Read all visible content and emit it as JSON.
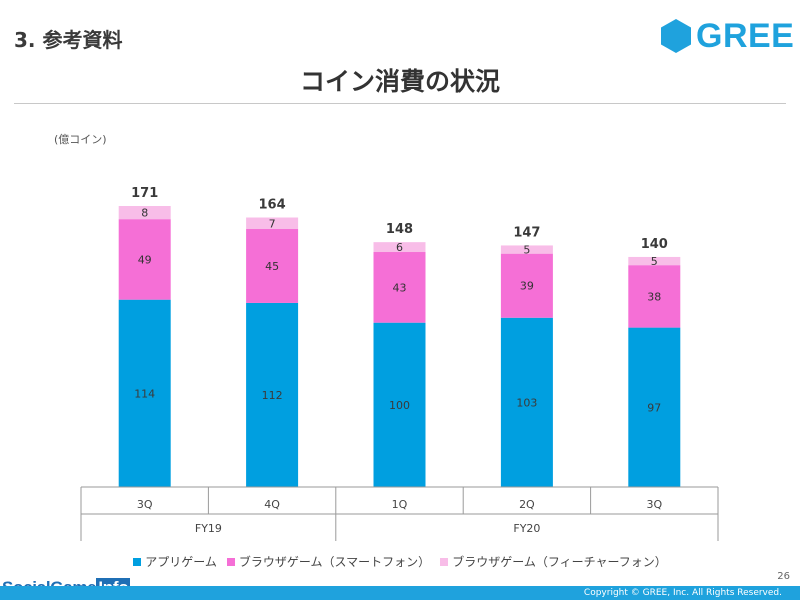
{
  "header": {
    "section_label": "3. 参考資料",
    "logo_text": "GREE"
  },
  "page_title": "コイン消費の状況",
  "footer": {
    "copyright": "Copyright © GREE, Inc. All Rights Reserved.",
    "page_number": "26",
    "watermark_main": "SocialGame",
    "watermark_info": "Info"
  },
  "colors": {
    "brand": "#1fa2dd",
    "app_game": "#009fe0",
    "browser_smartphone": "#f56fd6",
    "browser_featurephone": "#f8bde8"
  },
  "chart_data": {
    "type": "bar",
    "stacked": true,
    "unit_label": "(億コイン)",
    "categories": [
      "3Q",
      "4Q",
      "1Q",
      "2Q",
      "3Q"
    ],
    "groups": [
      {
        "label": "FY19",
        "span": 2
      },
      {
        "label": "FY20",
        "span": 3
      }
    ],
    "series": [
      {
        "name": "アプリゲーム",
        "color": "#009fe0",
        "values": [
          114,
          112,
          100,
          103,
          97
        ]
      },
      {
        "name": "ブラウザゲーム（スマートフォン）",
        "color": "#f56fd6",
        "values": [
          49,
          45,
          43,
          39,
          38
        ]
      },
      {
        "name": "ブラウザゲーム（フィーチャーフォン）",
        "color": "#f8bde8",
        "values": [
          8,
          7,
          6,
          5,
          5
        ]
      }
    ],
    "totals": [
      171,
      164,
      148,
      147,
      140
    ],
    "ylim": [
      0,
      171
    ],
    "legend_position": "bottom",
    "grid": false
  }
}
